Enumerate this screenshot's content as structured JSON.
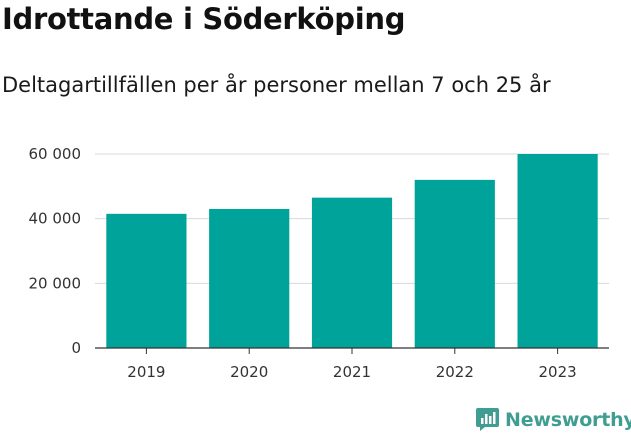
{
  "brand": {
    "name": "Newsworthy",
    "color": "#3f9e91"
  },
  "chart_data": {
    "type": "bar",
    "title": "Idrottande i Söderköping",
    "subtitle": "Deltagartillfällen per år personer mellan 7 och 25 år",
    "xlabel": "",
    "ylabel": "",
    "categories": [
      "2019",
      "2020",
      "2021",
      "2022",
      "2023"
    ],
    "values": [
      41500,
      43000,
      46500,
      52000,
      60000
    ],
    "ylim": [
      0,
      60000
    ],
    "yticks": [
      0,
      20000,
      40000,
      60000
    ],
    "ytick_labels": [
      "0",
      "20 000",
      "40 000",
      "60 000"
    ],
    "bar_color": "#00a39a",
    "grid": true,
    "legend": "none"
  }
}
